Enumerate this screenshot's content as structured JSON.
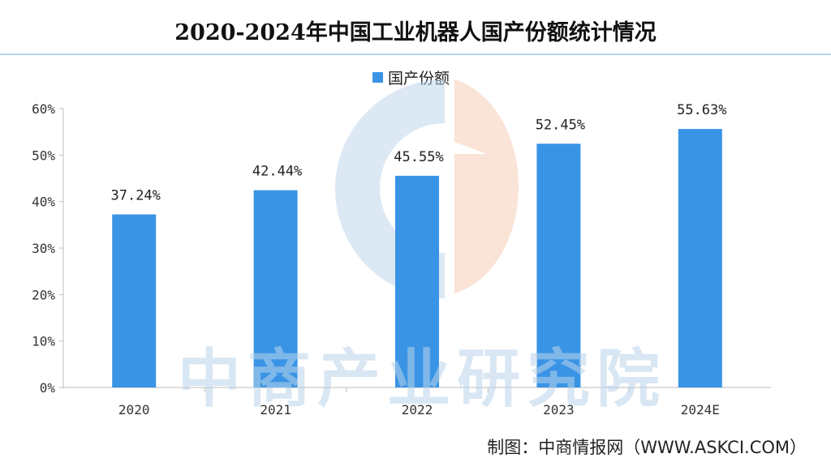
{
  "header": {
    "title": "2020-2024年中国工业机器人国产份额统计情况"
  },
  "legend": {
    "label": "国产份额",
    "color": "#3a94e6"
  },
  "watermark": {
    "text": "中商产业研究院"
  },
  "footer": {
    "source": "制图：中商情报网（WWW.ASKCI.COM）"
  },
  "colors": {
    "bar": "#3a94e6",
    "watermark_blue": "#b9d4ea",
    "watermark_orange": "#f6c9b0"
  },
  "chart_data": {
    "type": "bar",
    "title": "2020-2024年中国工业机器人国产份额统计情况",
    "categories": [
      "2020",
      "2021",
      "2022",
      "2023",
      "2024E"
    ],
    "series": [
      {
        "name": "国产份额",
        "values": [
          37.24,
          42.44,
          45.55,
          52.45,
          55.63
        ],
        "labels": [
          "37.24%",
          "42.44%",
          "45.55%",
          "52.45%",
          "55.63%"
        ]
      }
    ],
    "ylim": [
      0,
      60
    ],
    "yticks": [
      0,
      10,
      20,
      30,
      40,
      50,
      60
    ],
    "ytick_labels": [
      "0%",
      "10%",
      "20%",
      "30%",
      "40%",
      "50%",
      "60%"
    ],
    "xlabel": "",
    "ylabel": "",
    "grid": false,
    "legend_position": "top-center"
  }
}
